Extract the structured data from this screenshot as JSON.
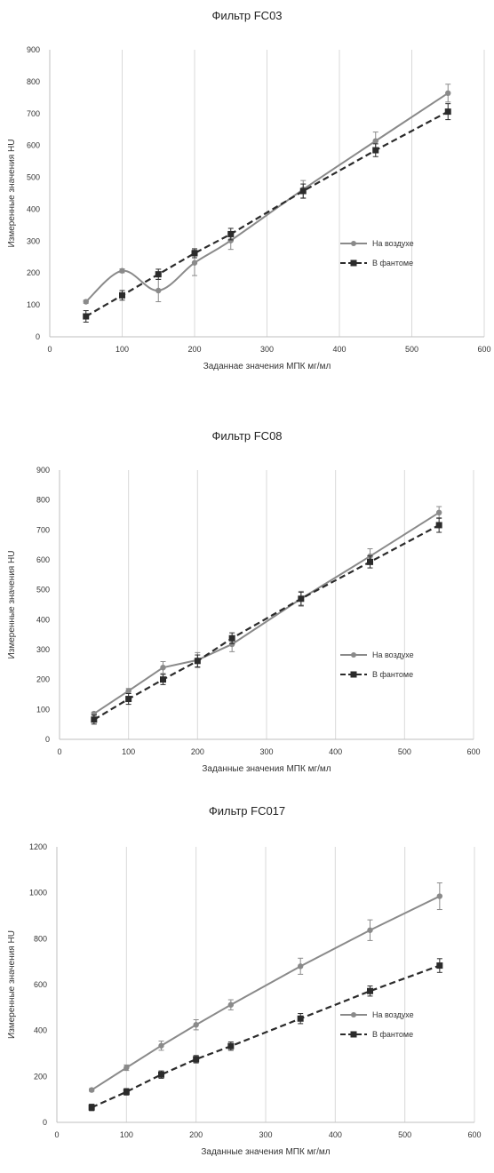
{
  "colors": {
    "air": "#8a8a8a",
    "phantom": "#2b2b2b",
    "grid": "#d9d9d9",
    "axis": "#bfbfbf"
  },
  "chart_data": [
    {
      "type": "line",
      "title": "Фильтр  FC03",
      "xlabel": "Заданнае значения МПК мг/мл",
      "ylabel": "Измеренные значения HU",
      "xlim": [
        0,
        600
      ],
      "ylim": [
        0,
        900
      ],
      "xticks": [
        0,
        100,
        200,
        300,
        400,
        500,
        600
      ],
      "yticks": [
        0,
        100,
        200,
        300,
        400,
        500,
        600,
        700,
        800,
        900
      ],
      "grid": "vertical",
      "legend": "right",
      "series": [
        {
          "name": "На воздухе",
          "style": "solid-smooth",
          "x": [
            50,
            100,
            150,
            200,
            250,
            350,
            450,
            550
          ],
          "y": [
            110,
            207,
            145,
            232,
            302,
            462,
            614,
            764
          ],
          "err": [
            5,
            6,
            35,
            40,
            28,
            28,
            28,
            28
          ]
        },
        {
          "name": "В фантоме",
          "style": "dashed",
          "x": [
            50,
            100,
            150,
            200,
            250,
            350,
            450,
            550
          ],
          "y": [
            64,
            130,
            196,
            262,
            322,
            457,
            585,
            706
          ],
          "err": [
            18,
            15,
            16,
            14,
            18,
            22,
            20,
            25
          ]
        }
      ]
    },
    {
      "type": "line",
      "title": "Фильтр  FC08",
      "xlabel": "Заданные значения МПК мг/мл",
      "ylabel": "Измеренные значения HU",
      "xlim": [
        0,
        600
      ],
      "ylim": [
        0,
        900
      ],
      "xticks": [
        0,
        100,
        200,
        300,
        400,
        500,
        600
      ],
      "yticks": [
        0,
        100,
        200,
        300,
        400,
        500,
        600,
        700,
        800,
        900
      ],
      "grid": "vertical",
      "legend": "right",
      "series": [
        {
          "name": "На воздухе",
          "style": "solid",
          "x": [
            50,
            100,
            150,
            200,
            250,
            350,
            450,
            550
          ],
          "y": [
            86,
            162,
            240,
            265,
            318,
            470,
            612,
            758
          ],
          "err": [
            5,
            8,
            20,
            25,
            25,
            25,
            25,
            20
          ]
        },
        {
          "name": "В фантоме",
          "style": "dashed",
          "x": [
            50,
            100,
            150,
            200,
            250,
            350,
            450,
            550
          ],
          "y": [
            66,
            135,
            200,
            262,
            338,
            470,
            593,
            716
          ],
          "err": [
            15,
            18,
            17,
            20,
            18,
            22,
            20,
            24
          ]
        }
      ]
    },
    {
      "type": "line",
      "title": "Фильтр  FC017",
      "xlabel": "Заданные значения МПК мг/мл",
      "ylabel": "Измеренные значения HU",
      "xlim": [
        0,
        600
      ],
      "ylim": [
        0,
        1200
      ],
      "xticks": [
        0,
        100,
        200,
        300,
        400,
        500,
        600
      ],
      "yticks": [
        0,
        200,
        400,
        600,
        800,
        1000,
        1200
      ],
      "grid": "vertical",
      "legend": "right",
      "series": [
        {
          "name": "На воздухе",
          "style": "solid",
          "x": [
            50,
            100,
            150,
            200,
            250,
            350,
            450,
            550
          ],
          "y": [
            141,
            238,
            334,
            425,
            512,
            680,
            837,
            985
          ],
          "err": [
            6,
            12,
            20,
            22,
            22,
            35,
            45,
            58
          ]
        },
        {
          "name": "В фантоме",
          "style": "dashed",
          "x": [
            50,
            100,
            150,
            200,
            250,
            350,
            450,
            550
          ],
          "y": [
            65,
            133,
            208,
            275,
            332,
            452,
            572,
            683
          ],
          "err": [
            14,
            14,
            16,
            16,
            18,
            22,
            22,
            30
          ]
        }
      ]
    }
  ]
}
